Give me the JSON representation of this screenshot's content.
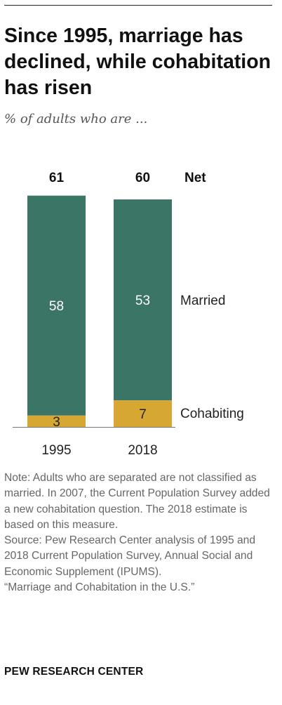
{
  "title": "Since 1995, marriage has declined, while cohabitation has risen",
  "subtitle": "% of adults who are ...",
  "net_label": "Net",
  "colors": {
    "married": "#3a7566",
    "cohabiting": "#d7a734"
  },
  "chart_data": {
    "type": "bar",
    "stacked": true,
    "categories": [
      "1995",
      "2018"
    ],
    "series": [
      {
        "name": "Married",
        "values": [
          58,
          53
        ]
      },
      {
        "name": "Cohabiting",
        "values": [
          3,
          7
        ]
      }
    ],
    "totals": [
      61,
      60
    ],
    "total_label": "Net",
    "legend_placement": "right",
    "grid": false
  },
  "notes": {
    "note": "Note: Adults who are separated are not classified as married. In 2007, the Current Population Survey added a new cohabitation question. The 2018 estimate is based on this measure.",
    "source": "Source: Pew Research Center analysis of 1995 and 2018 Current Population Survey, Annual Social and Economic Supplement (IPUMS).",
    "report": "“Marriage and Cohabitation in the U.S.”"
  },
  "footer": "PEW RESEARCH CENTER"
}
